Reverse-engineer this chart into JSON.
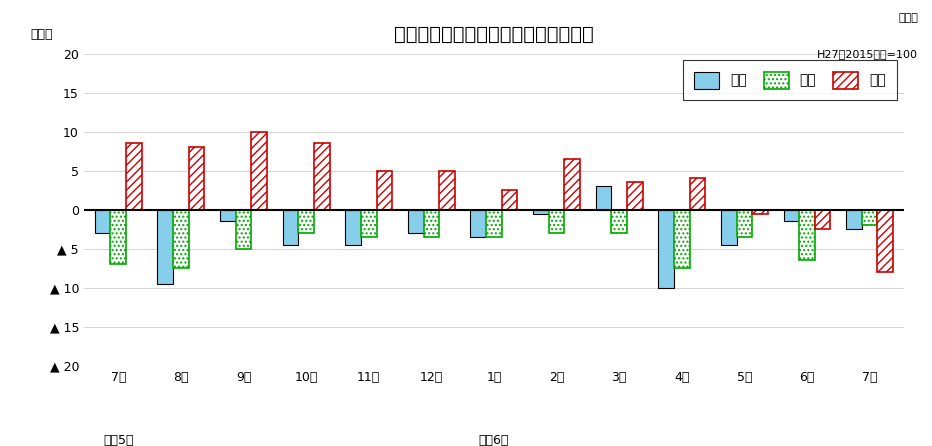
{
  "months": [
    "7月",
    "8月",
    "9月",
    "10月",
    "11月",
    "12月",
    "1月",
    "2月",
    "3月",
    "4月",
    "5月",
    "6月",
    "7月"
  ],
  "production": [
    -3.0,
    -9.5,
    -1.5,
    -4.5,
    -4.5,
    -3.0,
    -3.5,
    -0.5,
    3.0,
    -10.0,
    -4.5,
    -1.5,
    -2.5
  ],
  "shipment": [
    -7.0,
    -7.5,
    -5.0,
    -3.0,
    -3.5,
    -3.5,
    -3.5,
    -3.0,
    -3.0,
    -7.5,
    -3.5,
    -6.5,
    -2.0
  ],
  "inventory": [
    8.5,
    8.0,
    10.0,
    8.5,
    5.0,
    5.0,
    2.5,
    6.5,
    3.5,
    4.0,
    -0.5,
    -2.5,
    -8.0
  ],
  "title": "生産・出荷・在庫の前年同月比の推移",
  "subtitle_line1": "原指数",
  "subtitle_line2": "H27（2015）年=100",
  "ylabel": "（％）",
  "ylim": [
    -20,
    20
  ],
  "yticks": [
    20,
    15,
    10,
    5,
    0,
    -5,
    -10,
    -15,
    -20
  ],
  "ytick_labels": [
    "20",
    "15",
    "10",
    "5",
    "0",
    "▲ 5",
    "▲ 10",
    "▲ 15",
    "▲ 20"
  ],
  "prod_color": "#87CEEB",
  "prod_edge": "#000000",
  "ship_color": "#FFFFFF",
  "ship_edge": "#00AA00",
  "inv_color": "#FFFFFF",
  "inv_edge": "#CC0000",
  "background_color": "#FFFFFF",
  "bar_width": 0.25,
  "title_fontsize": 14,
  "tick_fontsize": 9,
  "legend_fontsize": 10
}
